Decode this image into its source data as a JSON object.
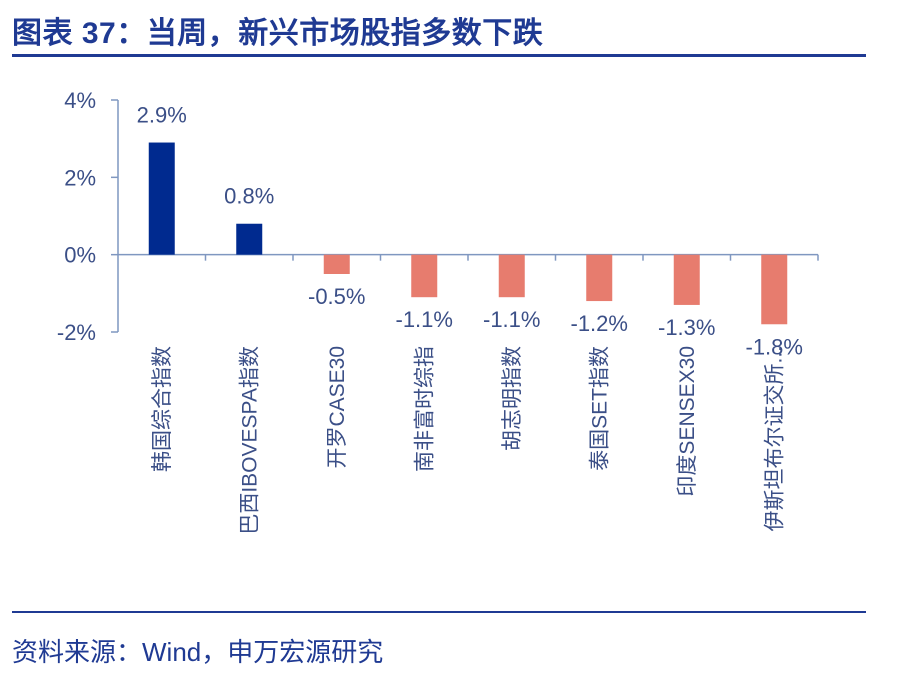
{
  "header": {
    "title": "图表 37：当周，新兴市场股指多数下跌"
  },
  "footer": {
    "source": "资料来源：Wind，申万宏源研究"
  },
  "chart_data": {
    "type": "bar",
    "title": "当周，新兴市场股指多数下跌",
    "xlabel": "",
    "ylabel": "",
    "ylim": [
      -2,
      4
    ],
    "yticks": [
      -2,
      0,
      2,
      4
    ],
    "ytick_labels": [
      "-2%",
      "0%",
      "2%",
      "4%"
    ],
    "categories": [
      "韩国综合指数",
      "巴西IBOVESPA指数",
      "开罗CASE30",
      "南非富时综指",
      "胡志明指数",
      "泰国SET指数",
      "印度SENSEX30",
      "伊斯坦布尔证交所..."
    ],
    "values": [
      2.9,
      0.8,
      -0.5,
      -1.1,
      -1.1,
      -1.2,
      -1.3,
      -1.8
    ],
    "data_labels": [
      "2.9%",
      "0.8%",
      "-0.5%",
      "-1.1%",
      "-1.1%",
      "-1.2%",
      "-1.3%",
      "-1.8%"
    ],
    "colors": {
      "positive": "#002a8f",
      "negative": "#e77c6e",
      "axis": "#7f97c0",
      "text": "#3b4f87"
    }
  }
}
